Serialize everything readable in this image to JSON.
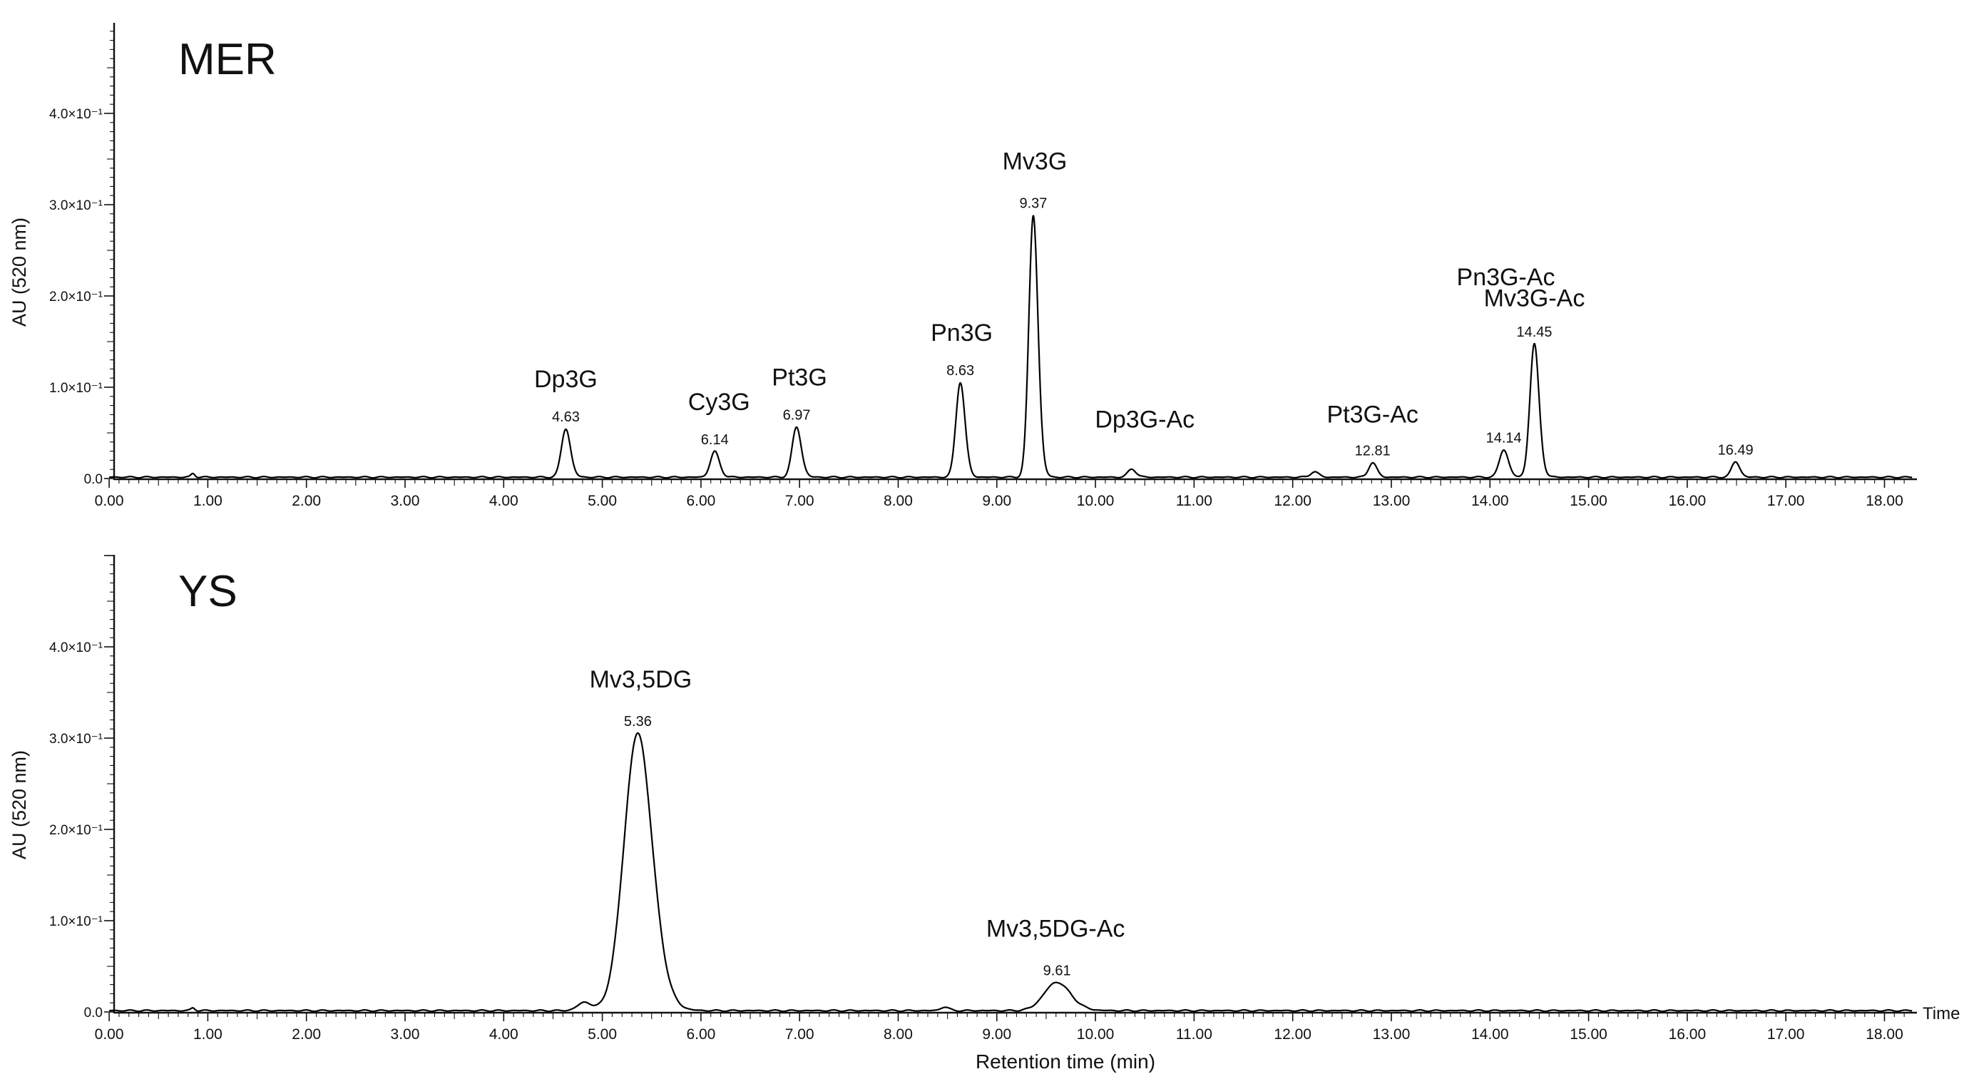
{
  "colors": {
    "trace": "#000000",
    "axis": "#111111",
    "background": "#ffffff"
  },
  "chart_data": [
    {
      "type": "line",
      "title": "MER",
      "xlabel": "",
      "ylabel": "AU (520 nm)",
      "xlim": [
        0,
        18.3
      ],
      "ylim": [
        0,
        0.5
      ],
      "x_ticks": [
        "0.00",
        "1.00",
        "2.00",
        "3.00",
        "4.00",
        "5.00",
        "6.00",
        "7.00",
        "8.00",
        "9.00",
        "10.00",
        "11.00",
        "12.00",
        "13.00",
        "14.00",
        "15.00",
        "16.00",
        "17.00",
        "18.00"
      ],
      "y_ticks": [
        {
          "value": 0.0,
          "label": "0.0"
        },
        {
          "value": 0.1,
          "label": "1.0×10⁻¹"
        },
        {
          "value": 0.2,
          "label": "2.0×10⁻¹"
        },
        {
          "value": 0.3,
          "label": "3.0×10⁻¹"
        },
        {
          "value": 0.4,
          "label": "4.0×10⁻¹"
        }
      ],
      "grid": false,
      "peaks": [
        {
          "rt": 0.85,
          "height": 0.004,
          "width": 0.02
        },
        {
          "rt": 4.63,
          "height": 0.053,
          "name": "Dp3G",
          "rt_label": "4.63"
        },
        {
          "rt": 6.14,
          "height": 0.028,
          "name": "Cy3G",
          "rt_label": "6.14"
        },
        {
          "rt": 6.97,
          "height": 0.055,
          "name": "Pt3G",
          "rt_label": "6.97"
        },
        {
          "rt": 8.63,
          "height": 0.104,
          "name": "Pn3G",
          "rt_label": "8.63"
        },
        {
          "rt": 9.37,
          "height": 0.287,
          "name": "Mv3G",
          "rt_label": "9.37"
        },
        {
          "rt": 10.37,
          "height": 0.009,
          "name": "Dp3G-Ac"
        },
        {
          "rt": 12.22,
          "height": 0.006
        },
        {
          "rt": 12.81,
          "height": 0.016,
          "name": "Pt3G-Ac",
          "rt_label": "12.81"
        },
        {
          "rt": 14.14,
          "height": 0.03,
          "rt_label": "14.14"
        },
        {
          "rt": 14.45,
          "height": 0.146,
          "name": "Pn3G-Ac",
          "rt_label": "14.45"
        },
        {
          "rt": 16.49,
          "height": 0.017,
          "rt_label": "16.49"
        }
      ],
      "annotations": [
        {
          "text": "Mv3G-Ac",
          "x": 14.45,
          "y": 0.198
        }
      ]
    },
    {
      "type": "line",
      "title": "YS",
      "xlabel": "Retention time (min)",
      "ylabel": "AU (520 nm)",
      "x_axis_unit": "Time",
      "xlim": [
        0,
        18.3
      ],
      "ylim": [
        0,
        0.5
      ],
      "x_ticks": [
        "0.00",
        "1.00",
        "2.00",
        "3.00",
        "4.00",
        "5.00",
        "6.00",
        "7.00",
        "8.00",
        "9.00",
        "10.00",
        "11.00",
        "12.00",
        "13.00",
        "14.00",
        "15.00",
        "16.00",
        "17.00",
        "18.00"
      ],
      "y_ticks": [
        {
          "value": 0.0,
          "label": "0.0"
        },
        {
          "value": 0.1,
          "label": "1.0×10⁻¹"
        },
        {
          "value": 0.2,
          "label": "2.0×10⁻¹"
        },
        {
          "value": 0.3,
          "label": "3.0×10⁻¹"
        },
        {
          "value": 0.4,
          "label": "4.0×10⁻¹"
        }
      ],
      "grid": false,
      "peaks": [
        {
          "rt": 0.85,
          "height": 0.003,
          "width": 0.02
        },
        {
          "rt": 4.82,
          "height": 0.009,
          "width": 0.07
        },
        {
          "rt": 5.36,
          "height": 0.304,
          "width": 0.14,
          "name": "Mv3,5DG",
          "rt_label": "5.36"
        },
        {
          "rt": 8.47,
          "height": 0.004,
          "width": 0.04
        },
        {
          "rt": 9.61,
          "height": 0.031,
          "width": 0.13,
          "name": "Mv3,5DG-Ac",
          "rt_label": "9.61"
        }
      ]
    }
  ]
}
